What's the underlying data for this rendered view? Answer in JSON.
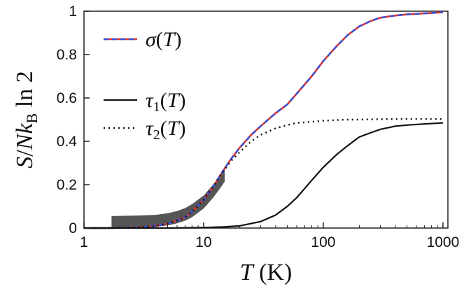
{
  "chart_data": {
    "type": "line",
    "xscale": "log",
    "xlim": [
      1,
      1100
    ],
    "ylim": [
      0,
      1
    ],
    "xticks": [
      1,
      10,
      100,
      1000
    ],
    "xtick_labels": [
      "1",
      "10",
      "100",
      "1000"
    ],
    "yticks": [
      0,
      0.2,
      0.4,
      0.6,
      0.8,
      1
    ],
    "ytick_labels": [
      "0",
      "0.2",
      "0.4",
      "0.6",
      "0.8",
      "1"
    ],
    "xlabel": "T (K)",
    "ylabel": "S/Nk_B ln2",
    "legend_position": "top-left",
    "colors": {
      "sigma_dash": "#3a4fd8",
      "sigma_solid": "#e0332d",
      "tau": "#111111",
      "band": "#555555"
    },
    "series": [
      {
        "name": "σ(T)",
        "style": "dashed-blue-over-red",
        "x": [
          1,
          1.5,
          2,
          3,
          4,
          5,
          6,
          7,
          8,
          10,
          12,
          14,
          17,
          20,
          25,
          30,
          40,
          50,
          60,
          80,
          100,
          130,
          160,
          200,
          250,
          300,
          400,
          500,
          700,
          1000
        ],
        "y": [
          0,
          0,
          0.001,
          0.004,
          0.01,
          0.02,
          0.035,
          0.05,
          0.075,
          0.13,
          0.19,
          0.25,
          0.32,
          0.37,
          0.43,
          0.47,
          0.53,
          0.57,
          0.62,
          0.7,
          0.77,
          0.84,
          0.89,
          0.93,
          0.955,
          0.97,
          0.98,
          0.985,
          0.99,
          0.995
        ]
      },
      {
        "name": "τ1(T)",
        "style": "solid",
        "x": [
          1,
          5,
          10,
          15,
          20,
          30,
          40,
          50,
          60,
          80,
          100,
          130,
          160,
          200,
          250,
          300,
          400,
          500,
          700,
          1000
        ],
        "y": [
          0,
          0,
          0.002,
          0.005,
          0.01,
          0.03,
          0.06,
          0.1,
          0.14,
          0.22,
          0.28,
          0.34,
          0.38,
          0.42,
          0.44,
          0.455,
          0.47,
          0.475,
          0.48,
          0.485
        ]
      },
      {
        "name": "τ2(T)",
        "style": "dotted",
        "x": [
          1,
          1.5,
          2,
          3,
          4,
          5,
          6,
          7,
          8,
          10,
          12,
          14,
          17,
          20,
          25,
          30,
          40,
          50,
          60,
          80,
          100,
          130,
          160,
          200,
          300,
          500,
          1000
        ],
        "y": [
          0,
          0,
          0.001,
          0.004,
          0.01,
          0.02,
          0.035,
          0.05,
          0.075,
          0.13,
          0.19,
          0.25,
          0.31,
          0.35,
          0.4,
          0.43,
          0.46,
          0.475,
          0.485,
          0.49,
          0.495,
          0.498,
          0.5,
          0.5,
          0.502,
          0.503,
          0.503
        ]
      }
    ],
    "band": {
      "name": "shaded region",
      "x": [
        1.7,
        2,
        3,
        4,
        5,
        6,
        7,
        8,
        10,
        12,
        14,
        15
      ],
      "upper": [
        0.055,
        0.056,
        0.058,
        0.061,
        0.068,
        0.078,
        0.092,
        0.11,
        0.15,
        0.2,
        0.25,
        0.27
      ],
      "lower": [
        0,
        0,
        0.002,
        0.006,
        0.012,
        0.022,
        0.034,
        0.05,
        0.09,
        0.14,
        0.19,
        0.215
      ]
    },
    "legend": [
      {
        "label": "σ(T)",
        "style": "dashed-blue-over-red"
      },
      {
        "label": "τ1(T)",
        "style": "solid"
      },
      {
        "label": "τ2(T)",
        "style": "dotted"
      }
    ]
  }
}
